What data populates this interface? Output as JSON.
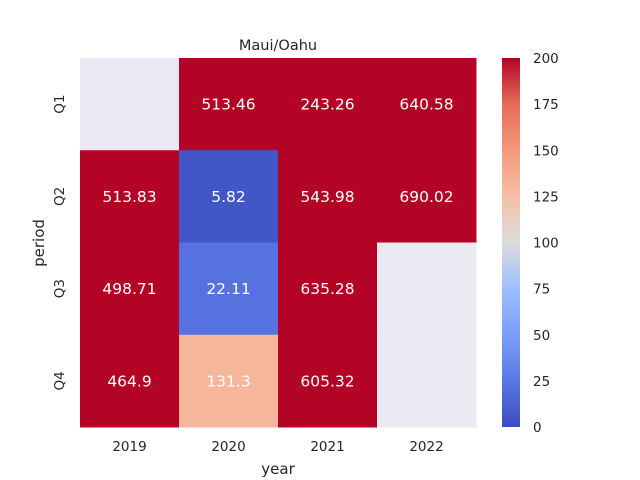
{
  "chart_data": {
    "type": "heatmap",
    "title": "Maui/Oahu",
    "xlabel": "year",
    "ylabel": "period",
    "x_categories": [
      "2019",
      "2020",
      "2021",
      "2022"
    ],
    "y_categories": [
      "Q1",
      "Q2",
      "Q3",
      "Q4"
    ],
    "values": [
      [
        null,
        513.46,
        243.26,
        640.58
      ],
      [
        513.83,
        5.82,
        543.98,
        690.02
      ],
      [
        498.71,
        22.11,
        635.28,
        null
      ],
      [
        464.9,
        131.3,
        605.32,
        null
      ]
    ],
    "cell_labels": [
      [
        "",
        "513.46",
        "243.26",
        "640.58"
      ],
      [
        "513.83",
        "5.82",
        "543.98",
        "690.02"
      ],
      [
        "498.71",
        "22.11",
        "635.28",
        ""
      ],
      [
        "464.9",
        "131.3",
        "605.32",
        ""
      ]
    ],
    "colorbar": {
      "colormap": "coolwarm",
      "vmin": 0,
      "vmax": 200,
      "ticks": [
        "0",
        "25",
        "50",
        "75",
        "100",
        "125",
        "150",
        "175",
        "200"
      ]
    },
    "missing_color": "#eaeaf2"
  }
}
